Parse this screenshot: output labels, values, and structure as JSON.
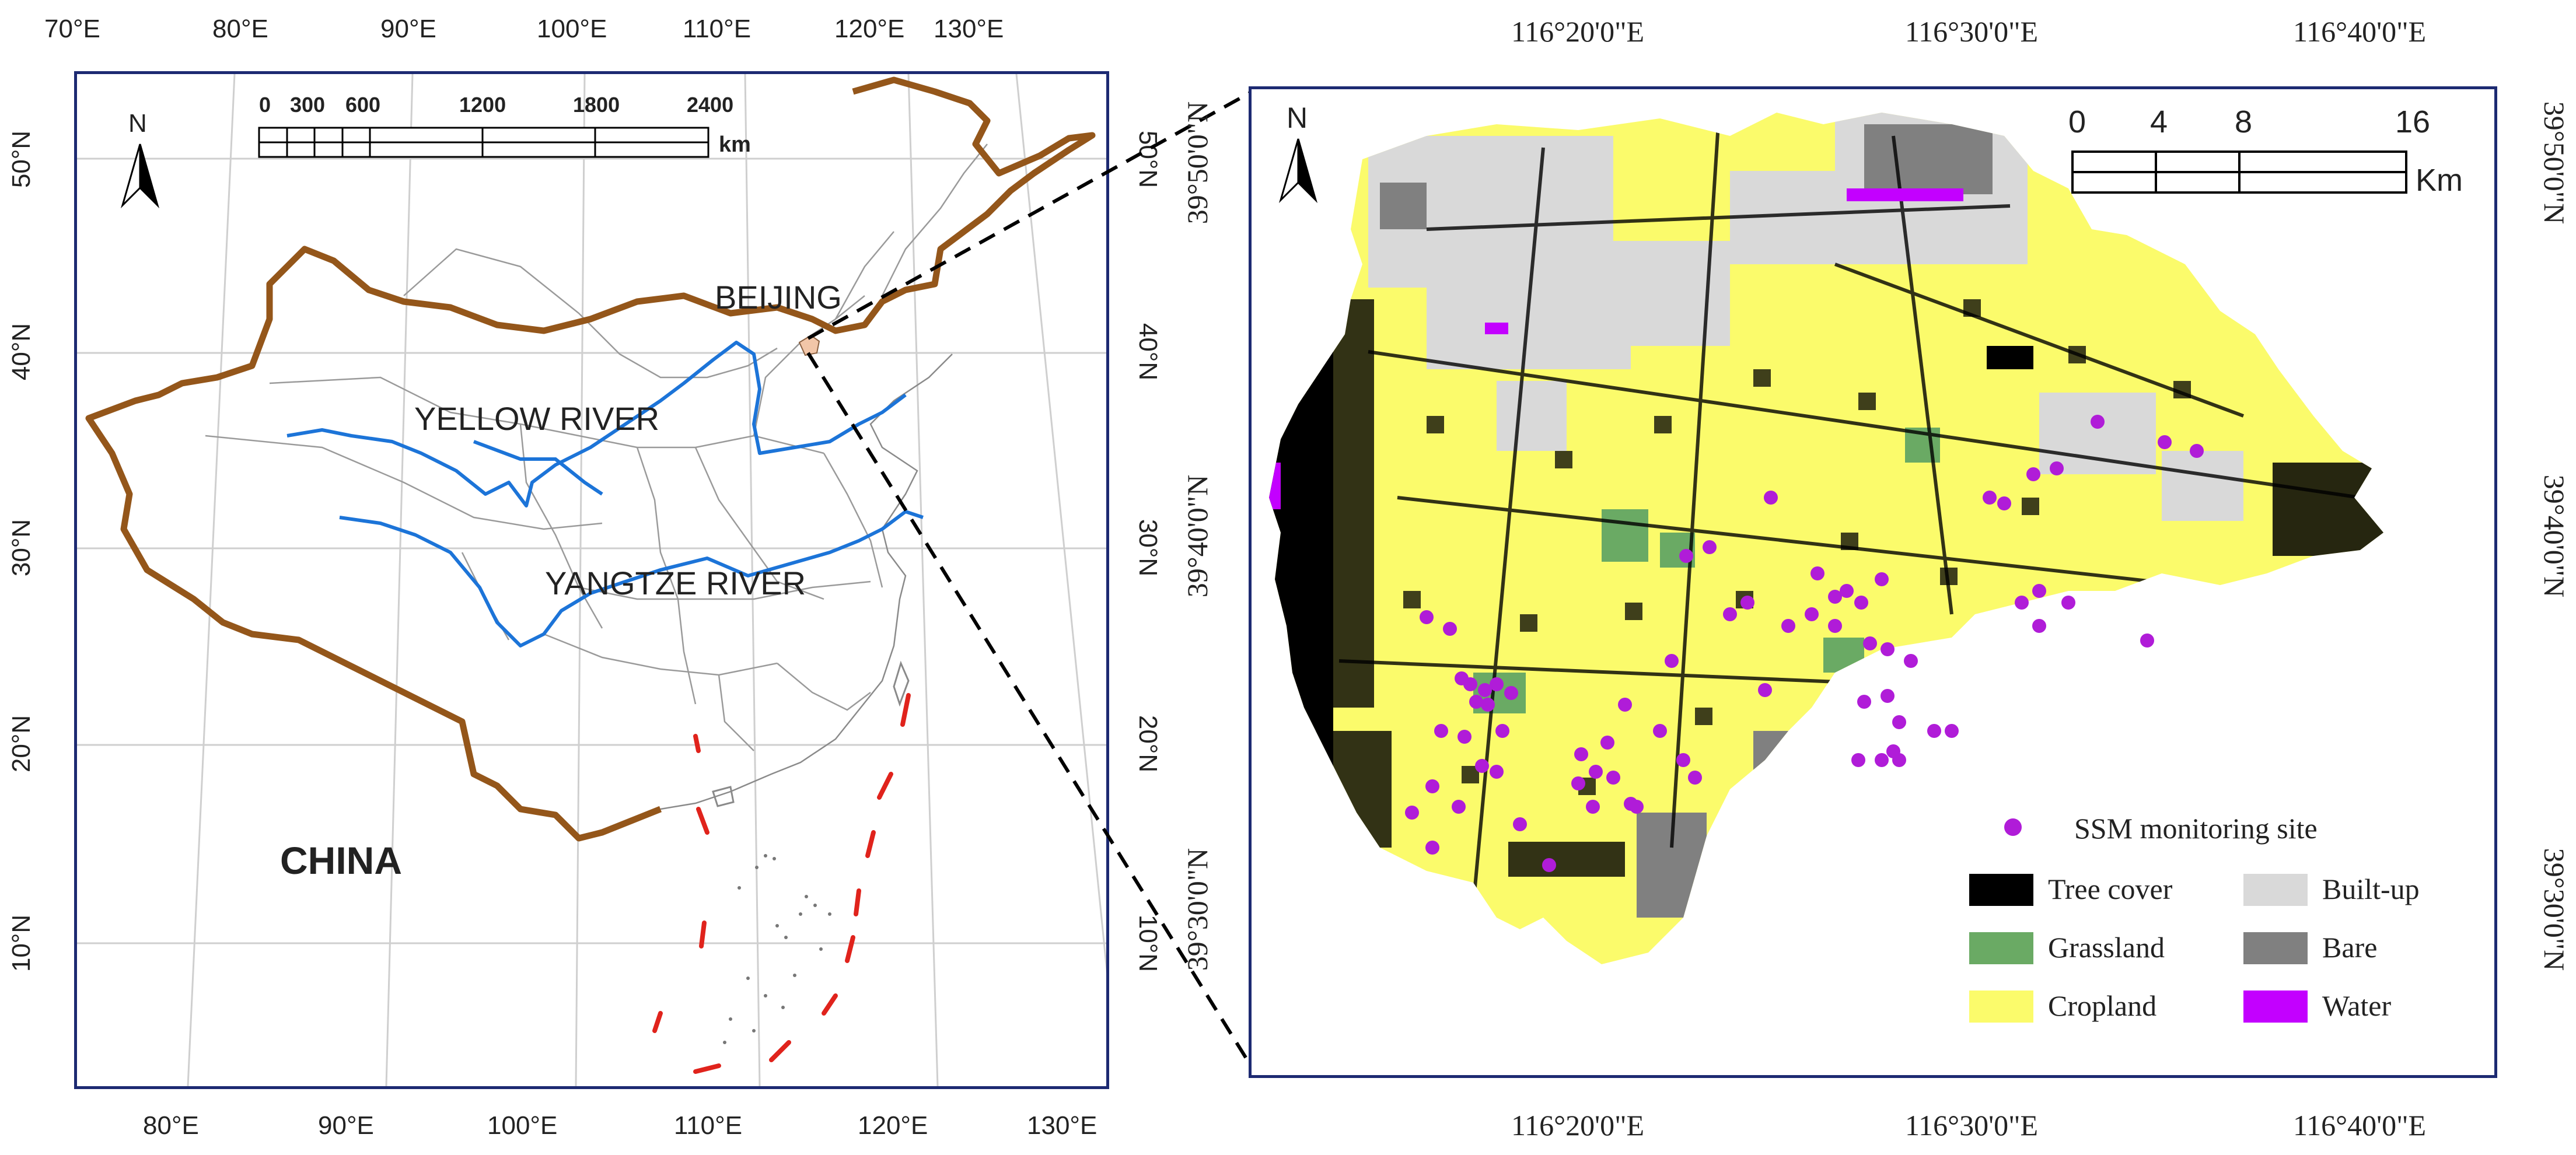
{
  "left_map": {
    "country_label": "CHINA",
    "city_label": "BEIJING",
    "rivers": [
      "YELLOW RIVER",
      "YANGTZE RIVER"
    ],
    "top_lon_ticks": [
      "70°E",
      "80°E",
      "90°E",
      "100°E",
      "110°E",
      "120°E",
      "130°E"
    ],
    "bottom_lon_ticks": [
      "80°E",
      "90°E",
      "100°E",
      "110°E",
      "120°E",
      "130°E"
    ],
    "left_lat_ticks": [
      "50°N",
      "40°N",
      "30°N",
      "20°N",
      "10°N"
    ],
    "right_lat_ticks": [
      "50°N",
      "40°N",
      "30°N",
      "20°N",
      "10°N"
    ],
    "scale_numbers": [
      "0",
      "300",
      "600",
      "1200",
      "1800",
      "2400"
    ],
    "scale_unit": "km",
    "north_label": "N",
    "colors": {
      "border": "#94561a",
      "river": "#1c74d8",
      "islands": "#e0231c",
      "frame": "#1d2a72"
    }
  },
  "right_map": {
    "top_lon_ticks": [
      "116°20'0\"E",
      "116°30'0\"E",
      "116°40'0\"E"
    ],
    "bottom_lon_ticks": [
      "116°20'0\"E",
      "116°30'0\"E",
      "116°40'0\"E"
    ],
    "left_lat_ticks": [
      "39°50'0\"N",
      "39°40'0\"N",
      "39°30'0\"N"
    ],
    "right_lat_ticks": [
      "39°50'0\"N",
      "39°40'0\"N",
      "39°30'0\"N"
    ],
    "scale_numbers": [
      "0",
      "4",
      "8",
      "16"
    ],
    "scale_unit": "Km",
    "north_label": "N",
    "site_legend": "SSM monitoring site",
    "legend": [
      {
        "label": "Tree cover",
        "color": "#000000"
      },
      {
        "label": "Built-up",
        "color": "#d9d9d9"
      },
      {
        "label": "Grassland",
        "color": "#6aaa64"
      },
      {
        "label": "Bare",
        "color": "#808080"
      },
      {
        "label": "Cropland",
        "color": "#fbfb6b"
      },
      {
        "label": "Water",
        "color": "#c300ff"
      }
    ],
    "site_color": "#b01cd8"
  }
}
